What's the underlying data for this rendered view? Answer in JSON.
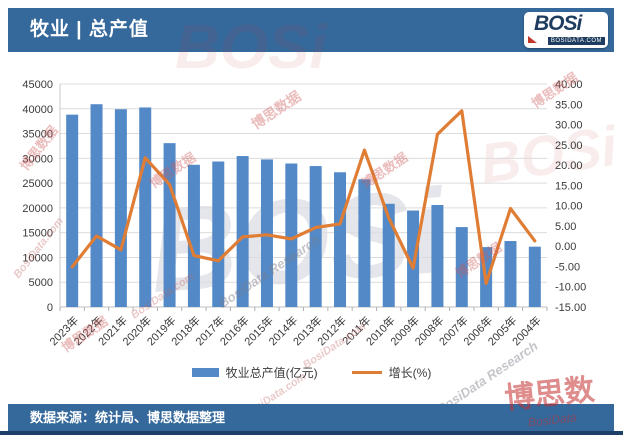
{
  "header": {
    "title": "牧业 | 总产值",
    "logo": {
      "text": "BOSi",
      "sub": "BOSIDATA.COM"
    }
  },
  "footer": {
    "source": "数据来源：统计局、博思数据整理"
  },
  "watermark": {
    "cn": "博思数据",
    "en": "BosiData.com",
    "script": "BosiData Research",
    "big": "BOSi",
    "corner": "博思数",
    "corner_sub": "BosiData"
  },
  "theme": {
    "header_blue": "#35689B",
    "bar_blue": "#5289C6",
    "line_orange": "#E07D35",
    "edge_navy": "#1E4068"
  },
  "chart_data": {
    "type": "bar",
    "subtype": "combo-bar-line",
    "title": "牧业 | 总产值",
    "categories": [
      "2023年",
      "2022年",
      "2021年",
      "2020年",
      "2019年",
      "2018年",
      "2017年",
      "2016年",
      "2015年",
      "2014年",
      "2013年",
      "2012年",
      "2011年",
      "2010年",
      "2009年",
      "2008年",
      "2007年",
      "2006年",
      "2005年",
      "2004年"
    ],
    "series": [
      {
        "name": "牧业总产值(亿元)",
        "type": "bar",
        "axis": "left",
        "color": "#5289C6",
        "values": [
          38817.3,
          40920.6,
          39909.9,
          40266.7,
          33064.3,
          28697.4,
          29361.2,
          30461.2,
          29780.4,
          28956.1,
          28435.5,
          27189.4,
          25771.3,
          20825.7,
          19468.4,
          20583.6,
          16125.2,
          12083.9,
          13310.8,
          12173.8
        ]
      },
      {
        "name": "增长(%)",
        "type": "line",
        "axis": "right",
        "color": "#E07D35",
        "values": [
          -5.1,
          2.5,
          -0.9,
          21.8,
          15.2,
          -2.3,
          -3.6,
          2.3,
          2.8,
          1.8,
          4.6,
          5.5,
          23.7,
          7.0,
          -5.4,
          27.6,
          33.4,
          -9.2,
          9.3,
          1.3
        ]
      }
    ],
    "left_axis": {
      "min": 0,
      "max": 45000,
      "step": 5000,
      "ticks": [
        "0",
        "5000",
        "10000",
        "15000",
        "20000",
        "25000",
        "30000",
        "35000",
        "40000",
        "45000"
      ]
    },
    "right_axis": {
      "min": -15,
      "max": 40,
      "step": 5,
      "ticks": [
        "-15.00",
        "-10.00",
        "-5.00",
        "0.00",
        "5.00",
        "10.00",
        "15.00",
        "20.00",
        "25.00",
        "30.00",
        "35.00",
        "40.00"
      ]
    },
    "grid": true,
    "legend_position": "bottom"
  }
}
